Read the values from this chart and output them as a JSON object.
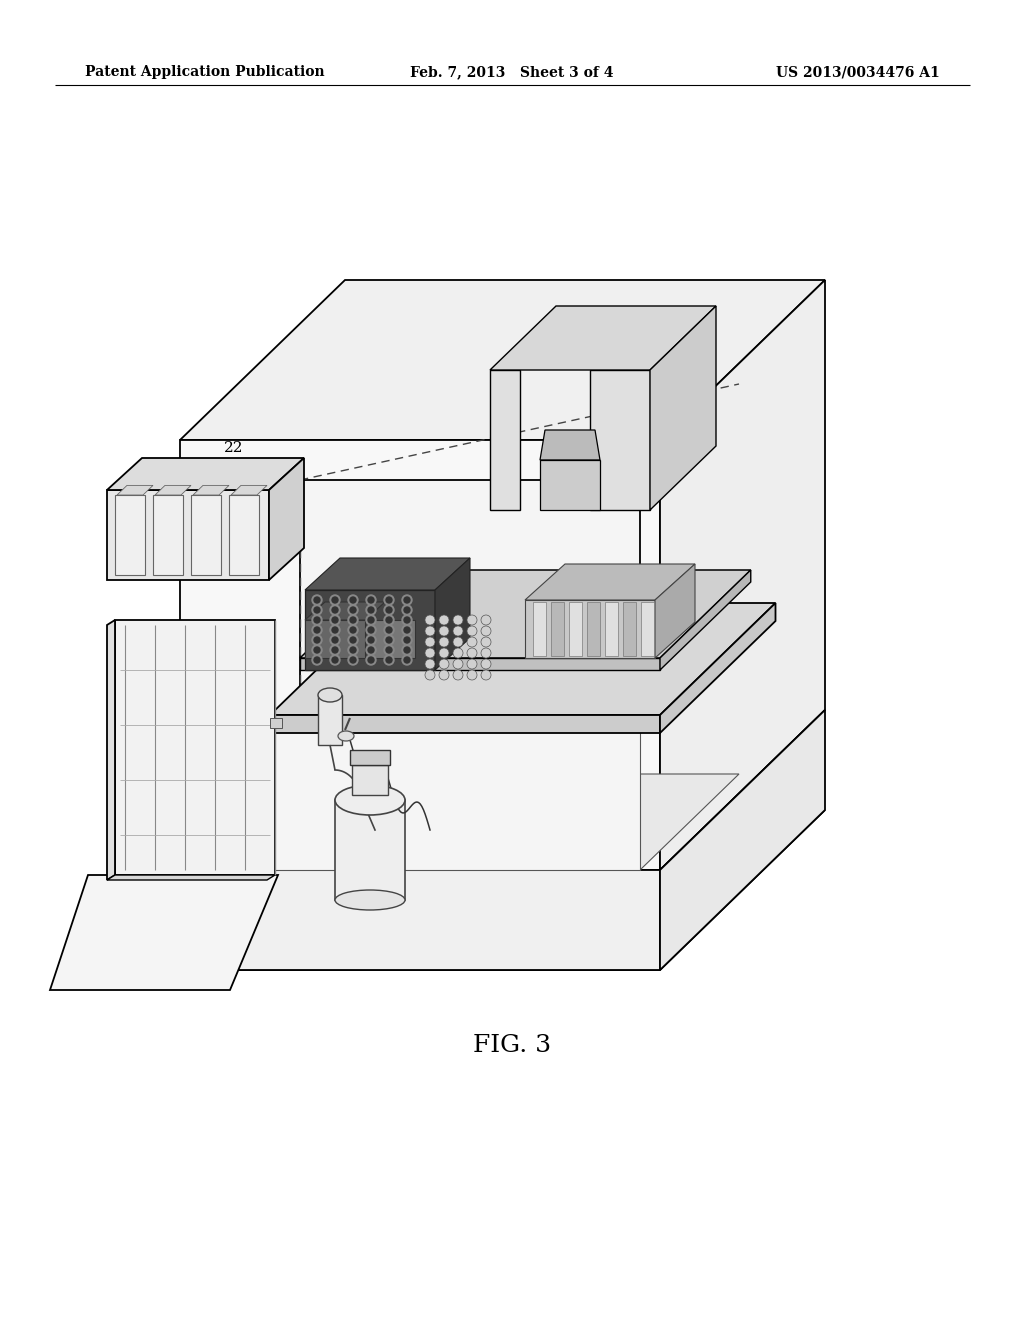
{
  "header_left": "Patent Application Publication",
  "header_mid": "Feb. 7, 2013   Sheet 3 of 4",
  "header_right": "US 2013/0034476 A1",
  "figure_label": "FIG. 3",
  "bg": "#ffffff",
  "lc": "#000000",
  "gray1": "#f5f5f5",
  "gray2": "#ebebeb",
  "gray3": "#e0e0e0",
  "gray4": "#cccccc",
  "gray5": "#aaaaaa",
  "dark1": "#555555",
  "dark2": "#333333"
}
